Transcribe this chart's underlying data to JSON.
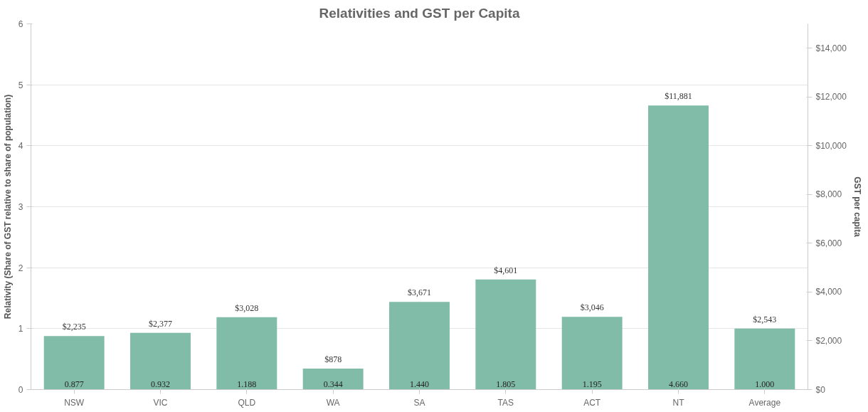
{
  "chart_data": {
    "type": "bar",
    "title": "Relativities and GST per Capita",
    "ylabel": "Relativity (Share of GST relative to share of population)",
    "y2label": "GST per capita",
    "categories": [
      "NSW",
      "VIC",
      "QLD",
      "WA",
      "SA",
      "TAS",
      "ACT",
      "NT",
      "Average"
    ],
    "series": [
      {
        "color": "#80bca8",
        "values": [
          0.877,
          0.932,
          1.188,
          0.344,
          1.44,
          1.805,
          1.195,
          4.66,
          1.0
        ],
        "value_labels": [
          "0.877",
          "0.932",
          "1.188",
          "0.344",
          "1.440",
          "1.805",
          "1.195",
          "4.660",
          "1.000"
        ]
      }
    ],
    "annotations": [
      {
        "text": "$2,235",
        "x": "NSW",
        "y": 0.877
      },
      {
        "text": "$2,377",
        "x": "VIC",
        "y": 0.932
      },
      {
        "text": "$3,028",
        "x": "QLD",
        "y": 1.188
      },
      {
        "text": "$878",
        "x": "WA",
        "y": 0.344
      },
      {
        "text": "$3,671",
        "x": "SA",
        "y": 1.44
      },
      {
        "text": "$4,601",
        "x": "TAS",
        "y": 1.805
      },
      {
        "text": "$3,046",
        "x": "ACT",
        "y": 1.195
      },
      {
        "text": "$11,881",
        "x": "NT",
        "y": 4.66
      },
      {
        "text": "$2,543",
        "x": "Average",
        "y": 1.0
      }
    ],
    "ylim": [
      0,
      6
    ],
    "yticks": [
      0,
      1,
      2,
      3,
      4,
      5,
      6
    ],
    "y2lim": [
      0,
      15000
    ],
    "y2ticks": [
      {
        "value": 0,
        "label": "$0"
      },
      {
        "value": 2000,
        "label": "$2,000"
      },
      {
        "value": 4000,
        "label": "$4,000"
      },
      {
        "value": 6000,
        "label": "$6,000"
      },
      {
        "value": 8000,
        "label": "$8,000"
      },
      {
        "value": 10000,
        "label": "$10,000"
      },
      {
        "value": 12000,
        "label": "$12,000"
      },
      {
        "value": 14000,
        "label": "$14,000"
      }
    ],
    "grid": "y"
  }
}
